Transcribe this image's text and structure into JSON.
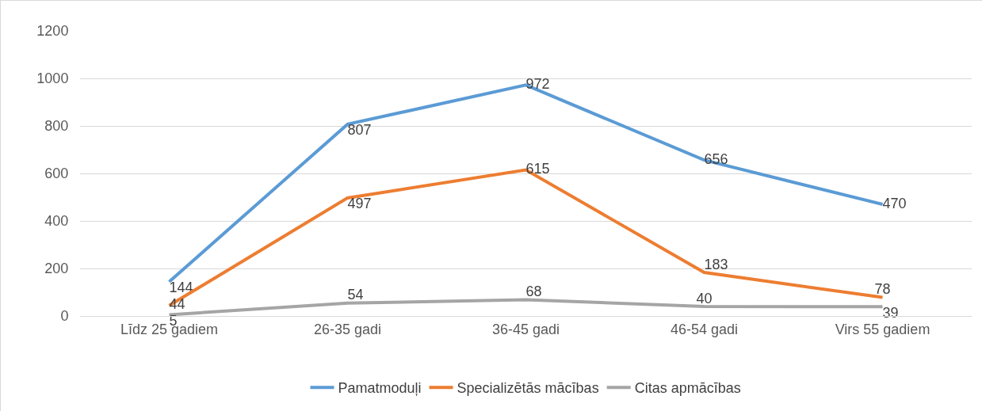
{
  "chart_data": {
    "type": "line",
    "categories": [
      "Līdz 25 gadiem",
      "26-35 gadi",
      "36-45 gadi",
      "46-54 gadi",
      "Virs 55 gadiem"
    ],
    "series": [
      {
        "name": "Pamatmoduļi",
        "color": "#5b9bd5",
        "values": [
          144,
          807,
          972,
          656,
          470
        ]
      },
      {
        "name": "Specializētās mācības",
        "color": "#ed7d31",
        "values": [
          44,
          497,
          615,
          183,
          78
        ]
      },
      {
        "name": "Citas apmācības",
        "color": "#a5a5a5",
        "values": [
          5,
          54,
          68,
          40,
          39
        ]
      }
    ],
    "ylim": [
      0,
      1200
    ],
    "yticks": [
      0,
      200,
      400,
      600,
      800,
      1000,
      1200
    ],
    "grid": "y",
    "legend": "bottom",
    "marker": "none",
    "line_style": "solid",
    "data_labels": true
  }
}
